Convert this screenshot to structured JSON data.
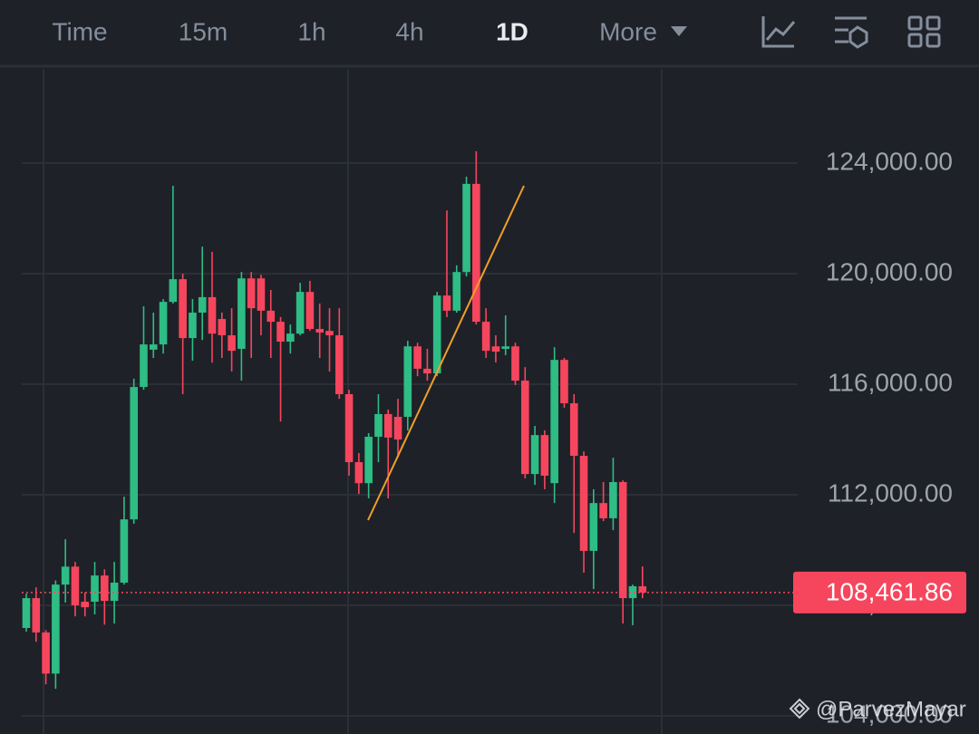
{
  "tabs": [
    "Time",
    "15m",
    "1h",
    "4h",
    "1D",
    "More"
  ],
  "watermark": "@ParvezMayar",
  "chart_data": {
    "type": "candlestick",
    "up_color": "#2ebd85",
    "down_color": "#f6465d",
    "ylim": [
      103344,
      127443
    ],
    "yticks": [
      {
        "value": 104000,
        "label": "104,000.00"
      },
      {
        "value": 108000,
        "label": "108,000.00"
      },
      {
        "value": 112000,
        "label": "112,000.00"
      },
      {
        "value": 116000,
        "label": "116,000.00"
      },
      {
        "value": 120000,
        "label": "120,000.00"
      },
      {
        "value": 124000,
        "label": "124,000.00"
      }
    ],
    "grid": true,
    "open": [
      107180,
      108260,
      107020,
      105530,
      108750,
      109400,
      108130,
      108130,
      109080,
      108160,
      108820,
      111110,
      115900,
      117250,
      117440,
      118980,
      119800,
      117670,
      118590,
      119150,
      118360,
      117770,
      117280,
      119830,
      119830,
      118660,
      118260,
      117540,
      117830,
      119340,
      118000,
      117930,
      117770,
      115640,
      113180,
      112420,
      114100,
      114920,
      114820,
      114820,
      117370,
      116560,
      116390,
      119210,
      118660,
      120060,
      123250,
      118260,
      117370,
      117280,
      117370,
      116130,
      112750,
      114160,
      112420,
      116880,
      115310,
      113410,
      109970,
      111700,
      111150,
      112460,
      108260,
      108690
    ],
    "high": [
      108420,
      108650,
      107100,
      108900,
      110390,
      109570,
      108460,
      109570,
      109300,
      109570,
      111930,
      116200,
      118820,
      118590,
      119080,
      123180,
      120000,
      119080,
      120980,
      120790,
      118590,
      118750,
      120060,
      120060,
      119960,
      119410,
      118430,
      118160,
      119670,
      119740,
      118920,
      118750,
      118750,
      115800,
      113510,
      114230,
      115640,
      115080,
      115470,
      117570,
      117500,
      117280,
      119340,
      122290,
      120300,
      123510,
      124430,
      118750,
      117770,
      118490,
      117500,
      116620,
      114490,
      114330,
      117340,
      116950,
      115640,
      113570,
      112200,
      112460,
      113340,
      112520,
      108750,
      109410
    ],
    "low": [
      107050,
      106680,
      105140,
      104980,
      108100,
      107600,
      107600,
      107670,
      107300,
      107340,
      108750,
      110950,
      115800,
      116950,
      117110,
      118920,
      115640,
      116850,
      117600,
      116780,
      116950,
      116460,
      116130,
      116950,
      117770,
      116950,
      114650,
      117110,
      117770,
      117930,
      116950,
      116460,
      115470,
      112690,
      112030,
      111870,
      113180,
      111870,
      113340,
      114330,
      116290,
      116130,
      116290,
      118430,
      118590,
      119900,
      118160,
      116950,
      116790,
      117050,
      115970,
      112590,
      112360,
      112200,
      111700,
      115150,
      110620,
      109180,
      108590,
      111050,
      110720,
      107340,
      107280,
      108260
    ],
    "close": [
      108260,
      107020,
      105530,
      108750,
      109400,
      108000,
      107930,
      109080,
      108160,
      108820,
      111110,
      115900,
      117440,
      117440,
      118980,
      119800,
      117670,
      118590,
      119150,
      117830,
      117770,
      117210,
      119830,
      118750,
      118660,
      118260,
      117540,
      117830,
      119340,
      118000,
      117870,
      117770,
      115640,
      113180,
      112420,
      114100,
      114920,
      114070,
      114000,
      117370,
      116560,
      116390,
      119210,
      118660,
      120060,
      123250,
      118260,
      117210,
      117180,
      117370,
      116130,
      112750,
      114160,
      112690,
      116880,
      115310,
      113410,
      109970,
      111700,
      111150,
      112460,
      108260,
      108690,
      108461.86
    ],
    "last_price": 108461.86,
    "last_price_label": "108,461.86"
  }
}
